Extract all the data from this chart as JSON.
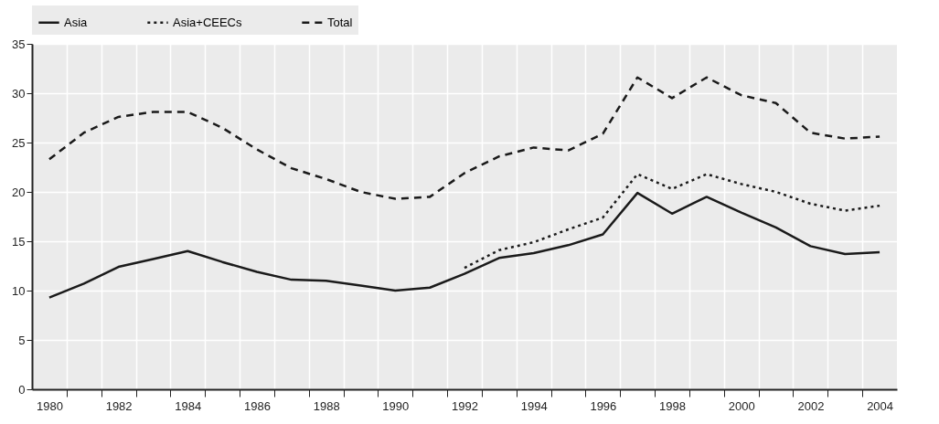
{
  "chart_data": {
    "type": "line",
    "x": [
      1980,
      1981,
      1982,
      1983,
      1984,
      1985,
      1986,
      1987,
      1988,
      1989,
      1990,
      1991,
      1992,
      1993,
      1994,
      1995,
      1996,
      1997,
      1998,
      1999,
      2000,
      2001,
      2002,
      2003,
      2004
    ],
    "series": [
      {
        "name": "Asia",
        "color": "#1a1a1a",
        "line_style": "solid",
        "values": [
          9.3,
          10.7,
          12.4,
          13.2,
          14.0,
          12.9,
          11.9,
          11.1,
          11.0,
          10.5,
          10.0,
          10.3,
          11.7,
          13.3,
          13.8,
          14.6,
          15.7,
          19.9,
          17.8,
          19.5,
          17.9,
          16.4,
          14.5,
          13.7,
          13.9
        ]
      },
      {
        "name": "Asia+CEECs",
        "color": "#1a1a1a",
        "line_style": "dotted",
        "values": [
          null,
          null,
          null,
          null,
          null,
          null,
          null,
          null,
          null,
          null,
          null,
          null,
          12.3,
          14.1,
          14.9,
          16.2,
          17.4,
          21.8,
          20.3,
          21.8,
          20.8,
          20.0,
          18.8,
          18.1,
          18.6
        ]
      },
      {
        "name": "Total",
        "color": "#1a1a1a",
        "line_style": "dashed",
        "values": [
          23.3,
          26.0,
          27.6,
          28.1,
          28.1,
          26.5,
          24.3,
          22.4,
          21.3,
          20.0,
          19.3,
          19.5,
          21.9,
          23.6,
          24.5,
          24.2,
          25.9,
          31.6,
          29.5,
          31.6,
          29.8,
          29.0,
          26.0,
          25.4,
          25.6
        ]
      }
    ],
    "xlim": [
      1979.5,
      2004.5
    ],
    "xticks": [
      1980,
      {
        "value": 1980.5,
        "label": null
      },
      {
        "value": 1981.5,
        "label": null
      },
      1982,
      {
        "value": 1982.5,
        "label": null
      },
      {
        "value": 1983.5,
        "label": null
      },
      1984,
      {
        "value": 1984.5,
        "label": null
      },
      {
        "value": 1985.5,
        "label": null
      },
      1986,
      {
        "value": 1986.5,
        "label": null
      },
      {
        "value": 1987.5,
        "label": null
      },
      1988,
      {
        "value": 1988.5,
        "label": null
      },
      {
        "value": 1989.5,
        "label": null
      },
      1990,
      {
        "value": 1990.5,
        "label": null
      },
      {
        "value": 1991.5,
        "label": null
      },
      1992,
      {
        "value": 1992.5,
        "label": null
      },
      {
        "value": 1993.5,
        "label": null
      },
      1994,
      {
        "value": 1994.5,
        "label": null
      },
      {
        "value": 1995.5,
        "label": null
      },
      1996,
      {
        "value": 1996.5,
        "label": null
      },
      {
        "value": 1997.5,
        "label": null
      },
      1998,
      {
        "value": 1998.5,
        "label": null
      },
      {
        "value": 1999.5,
        "label": null
      },
      2000,
      {
        "value": 2000.5,
        "label": null
      },
      {
        "value": 2001.5,
        "label": null
      },
      2002,
      {
        "value": 2002.5,
        "label": null
      },
      {
        "value": 2003.5,
        "label": null
      },
      2004
    ],
    "ylim": [
      0,
      35
    ],
    "yticks": [
      0,
      5,
      10,
      15,
      20,
      25,
      30,
      35
    ],
    "grid": true,
    "legend": "top",
    "marker": "none"
  }
}
